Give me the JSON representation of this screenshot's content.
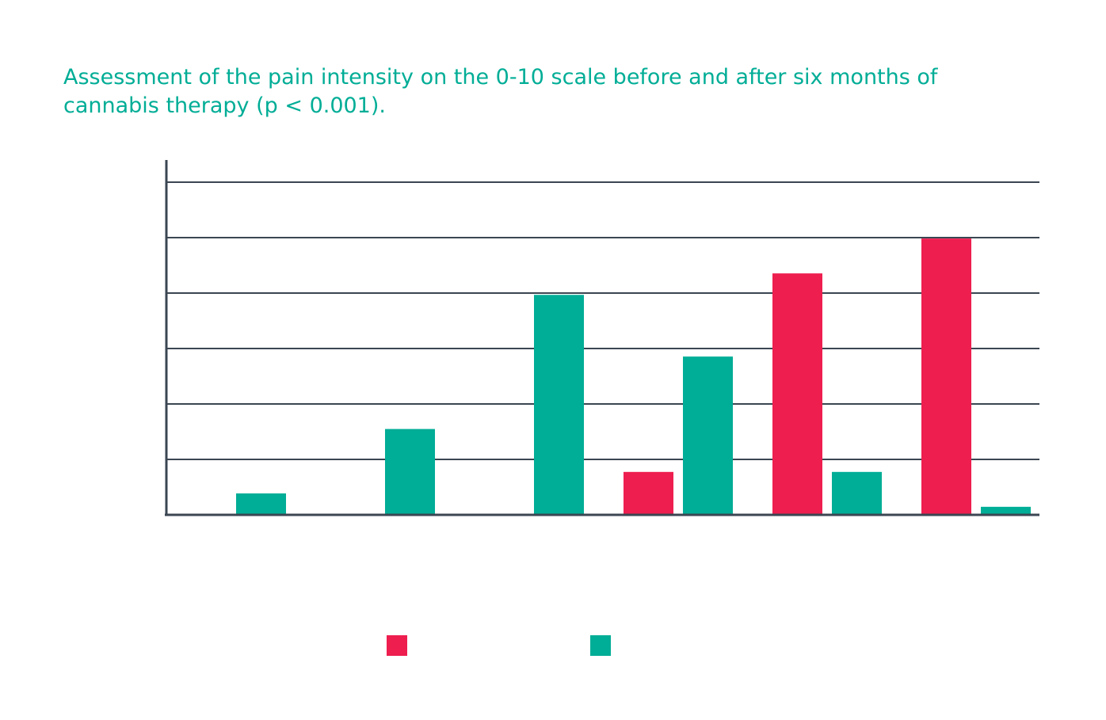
{
  "chart_data": {
    "type": "bar",
    "title": "Assessment of the pain intensity on the 0-10 scale before and after six months of cannabis therapy (p < 0.001).",
    "categories": [
      "",
      "",
      "",
      "",
      "",
      ""
    ],
    "ylim": [
      0,
      6.2
    ],
    "grid": true,
    "legend_position": "bottom",
    "series": [
      {
        "values": [
          0,
          0,
          0,
          0.8,
          4.5,
          5.15
        ],
        "color": "#ee1e4f"
      },
      {
        "values": [
          0.4,
          1.6,
          4.1,
          2.95,
          0.8,
          0.15
        ],
        "color": "#00ad96"
      }
    ]
  }
}
